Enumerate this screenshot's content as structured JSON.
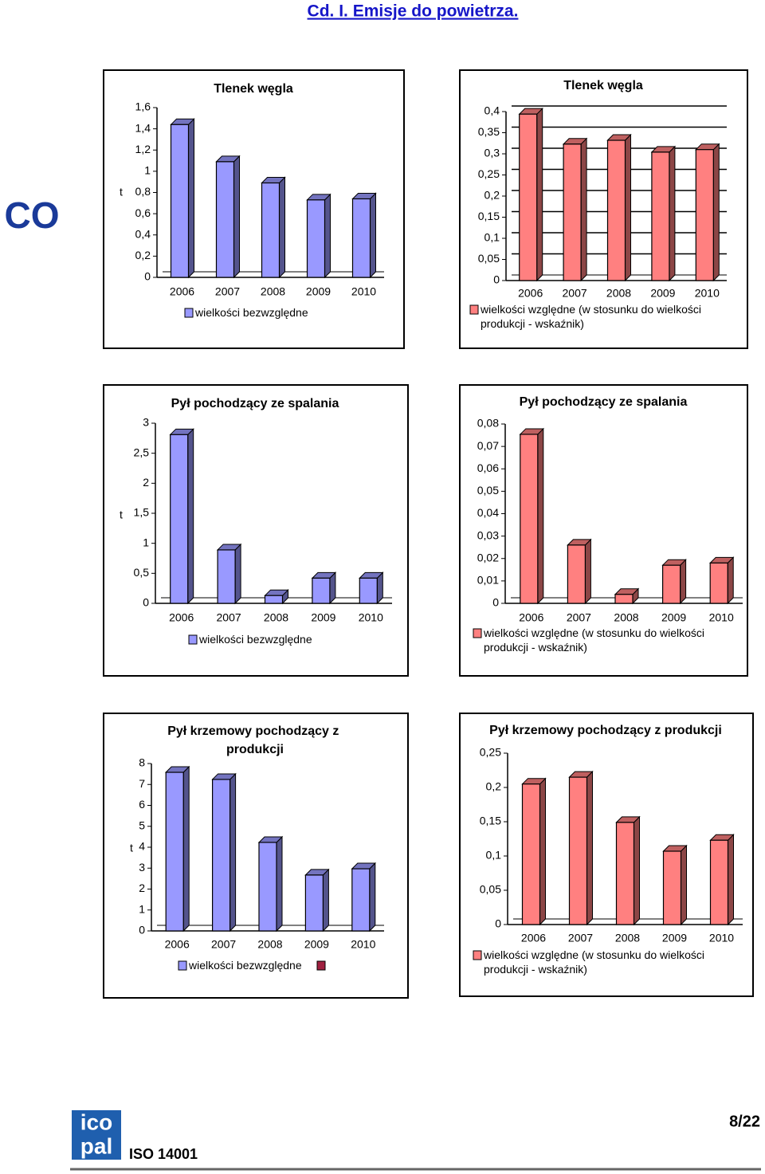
{
  "header": {
    "title": "Cd. I.  Emisje do powietrza."
  },
  "section_label": "CO",
  "chart_data": [
    {
      "type": "bar",
      "title": "Tlenek węgla",
      "y_label": "t",
      "categories": [
        "2006",
        "2007",
        "2008",
        "2009",
        "2010"
      ],
      "series": [
        {
          "name": "wielkości bezwzględne",
          "color": "#9999ff",
          "values": [
            1.44,
            1.09,
            0.89,
            0.73,
            0.74
          ]
        }
      ],
      "ylim": [
        0,
        1.6
      ],
      "yticks": [
        0,
        {
          "value": 0.2,
          "label": "0,2"
        },
        {
          "value": 0.4,
          "label": "0,4"
        },
        {
          "value": 0.6,
          "label": "0,6"
        },
        {
          "value": 0.8,
          "label": "0,8"
        },
        1,
        {
          "value": 1.2,
          "label": "1,2"
        },
        {
          "value": 1.4,
          "label": "1,4"
        },
        {
          "value": 1.6,
          "label": "1,6"
        }
      ],
      "grid": false
    },
    {
      "type": "bar",
      "title": "Tlenek węgla",
      "categories": [
        "2006",
        "2007",
        "2008",
        "2009",
        "2010"
      ],
      "series": [
        {
          "name": "wielkości względne (w stosunku do wielkości produkcji - wskaźnik)",
          "color": "#ff8080",
          "values": [
            0.394,
            0.323,
            0.332,
            0.304,
            0.31
          ]
        }
      ],
      "ylim": [
        0,
        0.4
      ],
      "yticks": [
        0,
        {
          "value": 0.05,
          "label": "0,05"
        },
        {
          "value": 0.1,
          "label": "0,1"
        },
        {
          "value": 0.15,
          "label": "0,15"
        },
        {
          "value": 0.2,
          "label": "0,2"
        },
        {
          "value": 0.25,
          "label": "0,25"
        },
        {
          "value": 0.3,
          "label": "0,3"
        },
        {
          "value": 0.35,
          "label": "0,35"
        },
        {
          "value": 0.4,
          "label": "0,4"
        }
      ],
      "grid": true
    },
    {
      "type": "bar",
      "title": "Pył pochodzący ze spalania",
      "y_label": "t",
      "categories": [
        "2006",
        "2007",
        "2008",
        "2009",
        "2010"
      ],
      "series": [
        {
          "name": "wielkości bezwzględne",
          "color": "#9999ff",
          "values": [
            2.81,
            0.89,
            0.13,
            0.42,
            0.42
          ]
        }
      ],
      "ylim": [
        0,
        3
      ],
      "yticks": [
        0,
        {
          "value": 0.5,
          "label": "0,5"
        },
        1,
        {
          "value": 1.5,
          "label": "1,5"
        },
        2,
        {
          "value": 2.5,
          "label": "2,5"
        },
        3
      ],
      "grid": false
    },
    {
      "type": "bar",
      "title": "Pył pochodzący ze spalania",
      "categories": [
        "2006",
        "2007",
        "2008",
        "2009",
        "2010"
      ],
      "series": [
        {
          "name": "wielkości względne (w stosunku do wielkości produkcji - wskaźnik)",
          "color": "#ff8080",
          "values": [
            0.0754,
            0.026,
            0.004,
            0.017,
            0.018
          ]
        }
      ],
      "ylim": [
        0,
        0.08
      ],
      "yticks": [
        0,
        {
          "value": 0.01,
          "label": "0,01"
        },
        {
          "value": 0.02,
          "label": "0,02"
        },
        {
          "value": 0.03,
          "label": "0,03"
        },
        {
          "value": 0.04,
          "label": "0,04"
        },
        {
          "value": 0.05,
          "label": "0,05"
        },
        {
          "value": 0.06,
          "label": "0,06"
        },
        {
          "value": 0.07,
          "label": "0,07"
        },
        {
          "value": 0.08,
          "label": "0,08"
        }
      ],
      "grid": false
    },
    {
      "type": "bar",
      "title": "Pył krzemowy pochodzący z produkcji",
      "y_label": "t",
      "categories": [
        "2006",
        "2007",
        "2008",
        "2009",
        "2010"
      ],
      "series": [
        {
          "name": "wielkości bezwzględne",
          "color": "#9999ff",
          "values": [
            7.58,
            7.24,
            4.23,
            2.67,
            2.97
          ]
        }
      ],
      "ylim": [
        0,
        8
      ],
      "yticks": [
        0,
        1,
        2,
        3,
        4,
        5,
        6,
        7,
        8
      ],
      "grid": false
    },
    {
      "type": "bar",
      "title": "Pył krzemowy pochodzący z produkcji",
      "categories": [
        "2006",
        "2007",
        "2008",
        "2009",
        "2010"
      ],
      "series": [
        {
          "name": "wielkości względne (w stosunku do wielkości produkcji - wskaźnik)",
          "color": "#ff8080",
          "values": [
            0.205,
            0.215,
            0.149,
            0.107,
            0.123
          ]
        }
      ],
      "ylim": [
        0,
        0.25
      ],
      "yticks": [
        0,
        {
          "value": 0.05,
          "label": "0,05"
        },
        {
          "value": 0.1,
          "label": "0,1"
        },
        {
          "value": 0.15,
          "label": "0,15"
        },
        {
          "value": 0.2,
          "label": "0,2"
        },
        {
          "value": 0.25,
          "label": "0,25"
        }
      ],
      "grid": false
    }
  ],
  "footer": {
    "logo_top": "ico",
    "logo_bottom": "pal",
    "certificate": "ISO 14001",
    "page": "8/22"
  }
}
